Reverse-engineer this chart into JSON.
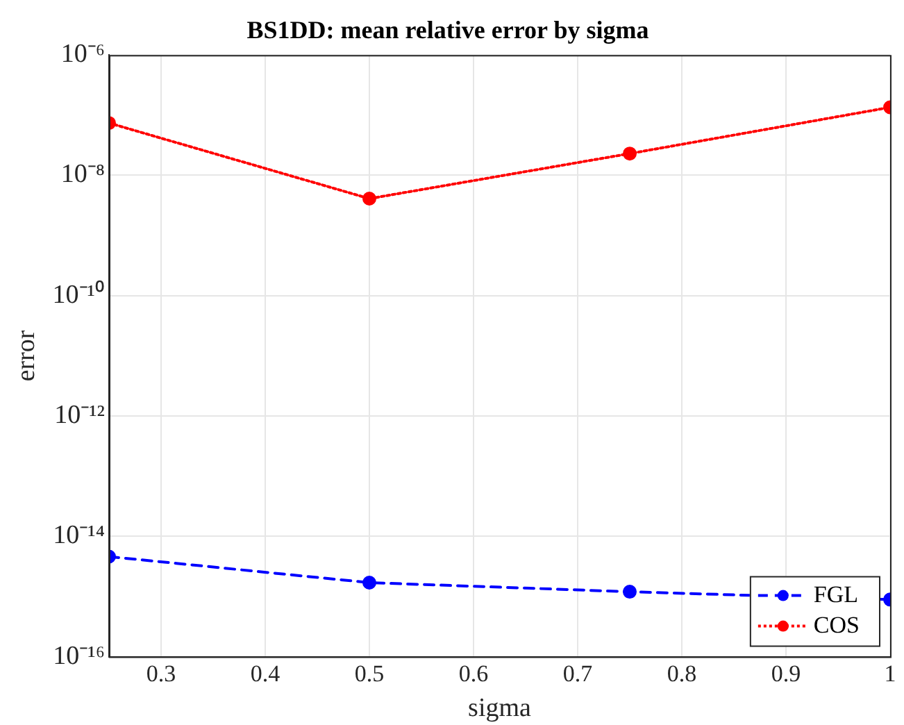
{
  "chart_data": {
    "type": "line",
    "title": "BS1DD: mean relative error by sigma",
    "xlabel": "sigma",
    "ylabel": "error",
    "x": [
      0.25,
      0.5,
      0.75,
      1
    ],
    "series": [
      {
        "name": "FGL",
        "color": "#0000ff",
        "line_style": "dashed",
        "values": [
          4.6e-15,
          1.7e-15,
          1.2e-15,
          8.9e-16
        ]
      },
      {
        "name": "COS",
        "color": "#ff0000",
        "line_style": "dotted",
        "values": [
          7.4e-08,
          4.1e-09,
          2.3e-08,
          1.35e-07
        ]
      }
    ],
    "xlim": [
      0.25,
      1
    ],
    "xticks": [
      0.3,
      0.4,
      0.5,
      0.6,
      0.7,
      0.8,
      0.9,
      1
    ],
    "ylim": [
      1e-16,
      1e-06
    ],
    "yticks": [
      {
        "value": 1e-16,
        "label": "10⁻¹⁶"
      },
      {
        "value": 1e-14,
        "label": "10⁻¹⁴"
      },
      {
        "value": 1e-12,
        "label": "10⁻¹²"
      },
      {
        "value": 1e-10,
        "label": "10⁻¹⁰"
      },
      {
        "value": 1e-08,
        "label": "10⁻⁸"
      },
      {
        "value": 1e-06,
        "label": "10⁻⁶"
      }
    ],
    "log": "y",
    "grid": true,
    "legend": "bottom right",
    "marker": "circle"
  }
}
